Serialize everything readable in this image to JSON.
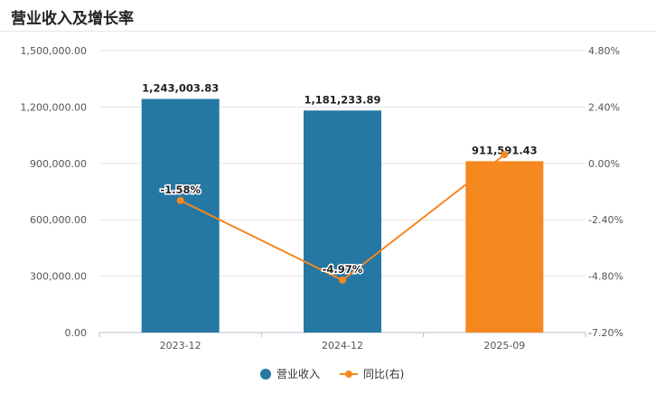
{
  "header": {
    "title": "营业收入及增长率"
  },
  "chart_data": {
    "type": "bar",
    "categories": [
      "2023-12",
      "2024-12",
      "2025-09"
    ],
    "series": [
      {
        "name": "营业收入",
        "type": "bar",
        "axis": "left",
        "values": [
          1243003.83,
          1181233.89,
          911591.43
        ],
        "labels": [
          "1,243,003.83",
          "1,181,233.89",
          "911,591.43"
        ],
        "colors": [
          "#2478a3",
          "#2478a3",
          "#f5881f"
        ]
      },
      {
        "name": "同比(右)",
        "type": "line",
        "axis": "right",
        "values": [
          -1.58,
          -4.97,
          0.37
        ],
        "labels": [
          "-1.58%",
          "-4.97%",
          ""
        ],
        "color": "#f5881f"
      }
    ],
    "left_axis": {
      "min": 0,
      "max": 1500000,
      "ticks": [
        "0.00",
        "300,000.00",
        "600,000.00",
        "900,000.00",
        "1,200,000.00",
        "1,500,000.00"
      ]
    },
    "right_axis": {
      "min": -7.2,
      "max": 4.8,
      "ticks": [
        "-7.20%",
        "-4.80%",
        "-2.40%",
        "0.00%",
        "2.40%",
        "4.80%"
      ]
    },
    "grid": true,
    "legend_position": "bottom"
  }
}
